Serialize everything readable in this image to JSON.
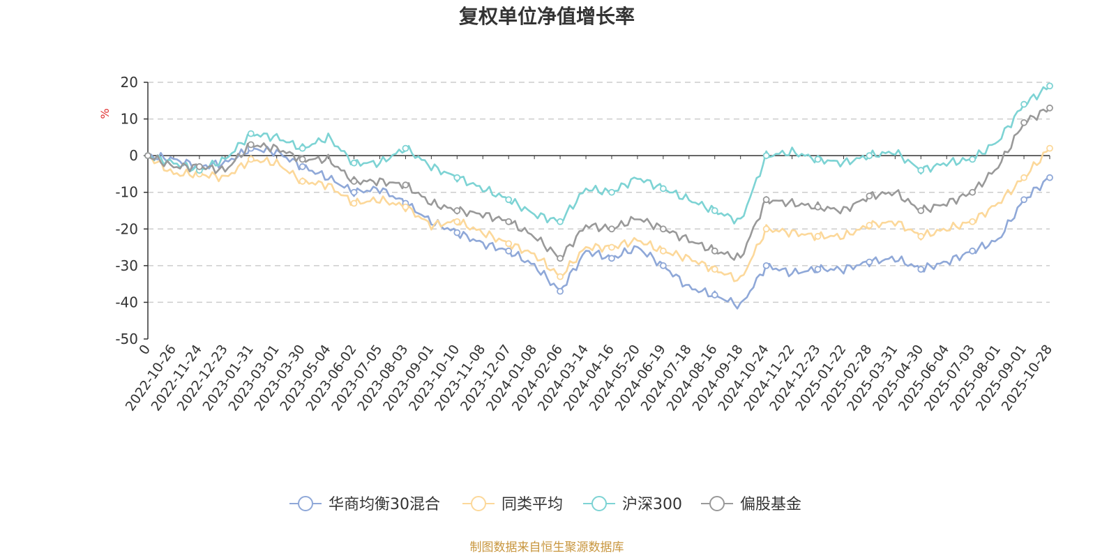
{
  "chart_data": {
    "type": "line",
    "title": "复权单位净值增长率",
    "ylabel": "%",
    "ylim": [
      -50,
      20
    ],
    "yticks": [
      20,
      10,
      0,
      -10,
      -20,
      -30,
      -40,
      -50
    ],
    "grid": true,
    "legend_position": "bottom",
    "categories": [
      "0",
      "2022-10-26",
      "2022-11-24",
      "2022-12-23",
      "2023-01-31",
      "2023-03-01",
      "2023-03-30",
      "2023-05-04",
      "2023-06-02",
      "2023-07-05",
      "2023-08-03",
      "2023-09-01",
      "2023-10-10",
      "2023-11-08",
      "2023-12-07",
      "2024-01-08",
      "2024-02-06",
      "2024-03-14",
      "2024-04-16",
      "2024-05-20",
      "2024-06-19",
      "2024-07-18",
      "2024-08-16",
      "2024-09-18",
      "2024-10-24",
      "2024-11-22",
      "2024-12-23",
      "2025-01-22",
      "2025-02-28",
      "2025-03-31",
      "2025-04-30",
      "2025-06-04",
      "2025-07-03",
      "2025-08-01",
      "2025-09-01",
      "2025-10-28"
    ],
    "series": [
      {
        "name": "华商均衡30混合",
        "color": "#8fa8d8",
        "values": [
          0,
          -1,
          -3,
          -2,
          2,
          1,
          -3,
          -6,
          -10,
          -9,
          -13,
          -18,
          -21,
          -24,
          -26,
          -30,
          -37,
          -26,
          -28,
          -25,
          -30,
          -36,
          -38,
          -41,
          -30,
          -32,
          -31,
          -31,
          -29,
          -28,
          -31,
          -29,
          -26,
          -23,
          -12,
          -6
        ]
      },
      {
        "name": "同类平均",
        "color": "#fcd89a",
        "values": [
          0,
          -5,
          -5,
          -6,
          -1,
          -2,
          -7,
          -8,
          -13,
          -12,
          -14,
          -19,
          -18,
          -21,
          -24,
          -27,
          -33,
          -25,
          -25,
          -23,
          -26,
          -28,
          -31,
          -34,
          -20,
          -21,
          -22,
          -22,
          -19,
          -18,
          -22,
          -20,
          -18,
          -13,
          -6,
          2
        ]
      },
      {
        "name": "沪深300",
        "color": "#7dd3d4",
        "values": [
          0,
          -2,
          -4,
          -1,
          6,
          5,
          2,
          5,
          -2,
          -2,
          2,
          -3,
          -6,
          -9,
          -12,
          -16,
          -18,
          -9,
          -10,
          -6,
          -9,
          -12,
          -15,
          -18,
          0,
          1,
          -1,
          -2,
          0,
          1,
          -4,
          -2,
          -1,
          4,
          14,
          19
        ]
      },
      {
        "name": "偏股基金",
        "color": "#999999",
        "values": [
          0,
          -3,
          -3,
          -4,
          3,
          2,
          -1,
          -1,
          -7,
          -7,
          -8,
          -13,
          -15,
          -16,
          -18,
          -22,
          -28,
          -19,
          -20,
          -17,
          -20,
          -23,
          -26,
          -28,
          -12,
          -13,
          -14,
          -15,
          -11,
          -10,
          -15,
          -13,
          -10,
          -3,
          9,
          13
        ]
      }
    ],
    "source_note": "制图数据来自恒生聚源数据库"
  }
}
